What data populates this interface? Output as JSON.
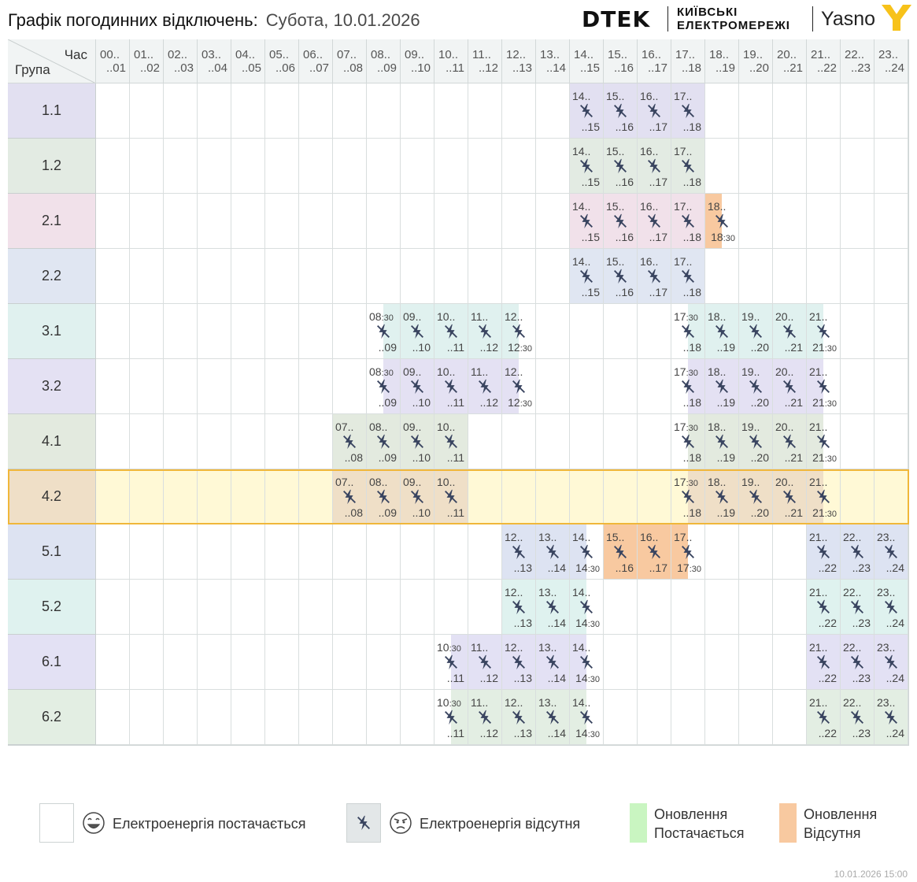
{
  "header": {
    "title": "Графік погодинних відключень:",
    "date": "Субота, 10.01.2026",
    "logo_dtek": "DTEK",
    "logo_kyiv_line1": "КИЇВСЬКІ",
    "logo_kyiv_line2": "ЕЛЕКТРОМЕРЕЖІ",
    "logo_yasno": "Yasno"
  },
  "corner": {
    "hour_label": "Час",
    "group_label": "Група"
  },
  "hours": [
    {
      "s": "00..",
      "e": "..01"
    },
    {
      "s": "01..",
      "e": "..02"
    },
    {
      "s": "02..",
      "e": "..03"
    },
    {
      "s": "03..",
      "e": "..04"
    },
    {
      "s": "04..",
      "e": "..05"
    },
    {
      "s": "05..",
      "e": "..06"
    },
    {
      "s": "06..",
      "e": "..07"
    },
    {
      "s": "07..",
      "e": "..08"
    },
    {
      "s": "08..",
      "e": "..09"
    },
    {
      "s": "09..",
      "e": "..10"
    },
    {
      "s": "10..",
      "e": "..11"
    },
    {
      "s": "11..",
      "e": "..12"
    },
    {
      "s": "12..",
      "e": "..13"
    },
    {
      "s": "13..",
      "e": "..14"
    },
    {
      "s": "14..",
      "e": "..15"
    },
    {
      "s": "15..",
      "e": "..16"
    },
    {
      "s": "16..",
      "e": "..17"
    },
    {
      "s": "17..",
      "e": "..18"
    },
    {
      "s": "18..",
      "e": "..19"
    },
    {
      "s": "19..",
      "e": "..20"
    },
    {
      "s": "20..",
      "e": "..21"
    },
    {
      "s": "21..",
      "e": "..22"
    },
    {
      "s": "22..",
      "e": "..23"
    },
    {
      "s": "23..",
      "e": "..24"
    }
  ],
  "colors": {
    "g1_1": "#e2e0f1",
    "g1_2": "#e3ebe3",
    "g2_1": "#f1e1ea",
    "g2_2": "#e0e6f2",
    "g3_1": "#e0f1ef",
    "g3_2": "#e4e1f3",
    "g4_1": "#e3eadf",
    "g4_2": "#efdfc7",
    "g5_1": "#dde3f2",
    "g5_2": "#dff2ef",
    "g6_1": "#e3e1f4",
    "g6_2": "#e3eee3",
    "highlight_row": "#fff9d6",
    "highlight_border": "#f0b73a",
    "update_off": "#f8c9a0",
    "update_on": "#c9f5c1",
    "icon": "#3a4560"
  },
  "groups": [
    {
      "name": "1.1",
      "color": "g1_1",
      "cells": [
        {
          "h": 14,
          "s": "14..",
          "e": "..15"
        },
        {
          "h": 15,
          "s": "15..",
          "e": "..16"
        },
        {
          "h": 16,
          "s": "16..",
          "e": "..17"
        },
        {
          "h": 17,
          "s": "17..",
          "e": "..18"
        }
      ]
    },
    {
      "name": "1.2",
      "color": "g1_2",
      "cells": [
        {
          "h": 14,
          "s": "14..",
          "e": "..15"
        },
        {
          "h": 15,
          "s": "15..",
          "e": "..16"
        },
        {
          "h": 16,
          "s": "16..",
          "e": "..17"
        },
        {
          "h": 17,
          "s": "17..",
          "e": "..18"
        }
      ]
    },
    {
      "name": "2.1",
      "color": "g2_1",
      "cells": [
        {
          "h": 14,
          "s": "14..",
          "e": "..15"
        },
        {
          "h": 15,
          "s": "15..",
          "e": "..16"
        },
        {
          "h": 16,
          "s": "16..",
          "e": "..17"
        },
        {
          "h": 17,
          "s": "17..",
          "e": "..18"
        },
        {
          "h": 18,
          "s": "18..",
          "e": "18",
          "e2": ":30",
          "half": "left",
          "upd": true
        }
      ]
    },
    {
      "name": "2.2",
      "color": "g2_2",
      "cells": [
        {
          "h": 14,
          "s": "14..",
          "e": "..15"
        },
        {
          "h": 15,
          "s": "15..",
          "e": "..16"
        },
        {
          "h": 16,
          "s": "16..",
          "e": "..17"
        },
        {
          "h": 17,
          "s": "17..",
          "e": "..18"
        }
      ]
    },
    {
      "name": "3.1",
      "color": "g3_1",
      "cells": [
        {
          "h": 8,
          "s": "08",
          "s2": ":30",
          "e": "..09",
          "half": "right"
        },
        {
          "h": 9,
          "s": "09..",
          "e": "..10"
        },
        {
          "h": 10,
          "s": "10..",
          "e": "..11"
        },
        {
          "h": 11,
          "s": "11..",
          "e": "..12"
        },
        {
          "h": 12,
          "s": "12..",
          "e": "12",
          "e2": ":30",
          "half": "left"
        },
        {
          "h": 17,
          "s": "17",
          "s2": ":30",
          "e": "..18",
          "half": "right"
        },
        {
          "h": 18,
          "s": "18..",
          "e": "..19"
        },
        {
          "h": 19,
          "s": "19..",
          "e": "..20"
        },
        {
          "h": 20,
          "s": "20..",
          "e": "..21"
        },
        {
          "h": 21,
          "s": "21..",
          "e": "21",
          "e2": ":30",
          "half": "left"
        }
      ]
    },
    {
      "name": "3.2",
      "color": "g3_2",
      "cells": [
        {
          "h": 8,
          "s": "08",
          "s2": ":30",
          "e": "..09",
          "half": "right"
        },
        {
          "h": 9,
          "s": "09..",
          "e": "..10"
        },
        {
          "h": 10,
          "s": "10..",
          "e": "..11"
        },
        {
          "h": 11,
          "s": "11..",
          "e": "..12"
        },
        {
          "h": 12,
          "s": "12..",
          "e": "12",
          "e2": ":30",
          "half": "left"
        },
        {
          "h": 17,
          "s": "17",
          "s2": ":30",
          "e": "..18",
          "half": "right"
        },
        {
          "h": 18,
          "s": "18..",
          "e": "..19"
        },
        {
          "h": 19,
          "s": "19..",
          "e": "..20"
        },
        {
          "h": 20,
          "s": "20..",
          "e": "..21"
        },
        {
          "h": 21,
          "s": "21..",
          "e": "21",
          "e2": ":30",
          "half": "left"
        }
      ]
    },
    {
      "name": "4.1",
      "color": "g4_1",
      "cells": [
        {
          "h": 7,
          "s": "07..",
          "e": "..08"
        },
        {
          "h": 8,
          "s": "08..",
          "e": "..09"
        },
        {
          "h": 9,
          "s": "09..",
          "e": "..10"
        },
        {
          "h": 10,
          "s": "10..",
          "e": "..11"
        },
        {
          "h": 17,
          "s": "17",
          "s2": ":30",
          "e": "..18",
          "half": "right"
        },
        {
          "h": 18,
          "s": "18..",
          "e": "..19"
        },
        {
          "h": 19,
          "s": "19..",
          "e": "..20"
        },
        {
          "h": 20,
          "s": "20..",
          "e": "..21"
        },
        {
          "h": 21,
          "s": "21..",
          "e": "21",
          "e2": ":30",
          "half": "left"
        }
      ]
    },
    {
      "name": "4.2",
      "color": "g4_2",
      "highlight": true,
      "cells": [
        {
          "h": 7,
          "s": "07..",
          "e": "..08"
        },
        {
          "h": 8,
          "s": "08..",
          "e": "..09"
        },
        {
          "h": 9,
          "s": "09..",
          "e": "..10"
        },
        {
          "h": 10,
          "s": "10..",
          "e": "..11"
        },
        {
          "h": 17,
          "s": "17",
          "s2": ":30",
          "e": "..18",
          "half": "right"
        },
        {
          "h": 18,
          "s": "18..",
          "e": "..19"
        },
        {
          "h": 19,
          "s": "19..",
          "e": "..20"
        },
        {
          "h": 20,
          "s": "20..",
          "e": "..21"
        },
        {
          "h": 21,
          "s": "21..",
          "e": "21",
          "e2": ":30",
          "half": "left"
        }
      ]
    },
    {
      "name": "5.1",
      "color": "g5_1",
      "cells": [
        {
          "h": 12,
          "s": "12..",
          "e": "..13"
        },
        {
          "h": 13,
          "s": "13..",
          "e": "..14"
        },
        {
          "h": 14,
          "s": "14..",
          "e": "14",
          "e2": ":30",
          "half": "left"
        },
        {
          "h": 15,
          "s": "15..",
          "e": "..16",
          "upd": true
        },
        {
          "h": 16,
          "s": "16..",
          "e": "..17",
          "upd": true
        },
        {
          "h": 17,
          "s": "17..",
          "e": "17",
          "e2": ":30",
          "half": "left",
          "upd": true
        },
        {
          "h": 21,
          "s": "21..",
          "e": "..22"
        },
        {
          "h": 22,
          "s": "22..",
          "e": "..23"
        },
        {
          "h": 23,
          "s": "23..",
          "e": "..24"
        }
      ]
    },
    {
      "name": "5.2",
      "color": "g5_2",
      "cells": [
        {
          "h": 12,
          "s": "12..",
          "e": "..13"
        },
        {
          "h": 13,
          "s": "13..",
          "e": "..14"
        },
        {
          "h": 14,
          "s": "14..",
          "e": "14",
          "e2": ":30",
          "half": "left"
        },
        {
          "h": 21,
          "s": "21..",
          "e": "..22"
        },
        {
          "h": 22,
          "s": "22..",
          "e": "..23"
        },
        {
          "h": 23,
          "s": "23..",
          "e": "..24"
        }
      ]
    },
    {
      "name": "6.1",
      "color": "g6_1",
      "cells": [
        {
          "h": 10,
          "s": "10",
          "s2": ":30",
          "e": "..11",
          "half": "right"
        },
        {
          "h": 11,
          "s": "11..",
          "e": "..12"
        },
        {
          "h": 12,
          "s": "12..",
          "e": "..13"
        },
        {
          "h": 13,
          "s": "13..",
          "e": "..14"
        },
        {
          "h": 14,
          "s": "14..",
          "e": "14",
          "e2": ":30",
          "half": "left"
        },
        {
          "h": 21,
          "s": "21..",
          "e": "..22"
        },
        {
          "h": 22,
          "s": "22..",
          "e": "..23"
        },
        {
          "h": 23,
          "s": "23..",
          "e": "..24"
        }
      ]
    },
    {
      "name": "6.2",
      "color": "g6_2",
      "cells": [
        {
          "h": 10,
          "s": "10",
          "s2": ":30",
          "e": "..11",
          "half": "right"
        },
        {
          "h": 11,
          "s": "11..",
          "e": "..12"
        },
        {
          "h": 12,
          "s": "12..",
          "e": "..13"
        },
        {
          "h": 13,
          "s": "13..",
          "e": "..14"
        },
        {
          "h": 14,
          "s": "14..",
          "e": "14",
          "e2": ":30",
          "half": "left"
        },
        {
          "h": 21,
          "s": "21..",
          "e": "..22"
        },
        {
          "h": 22,
          "s": "22..",
          "e": "..23"
        },
        {
          "h": 23,
          "s": "23..",
          "e": "..24"
        }
      ]
    }
  ],
  "legend": {
    "supplied": "Електроенергія постачається",
    "absent": "Електроенергія відсутня",
    "update_on_l1": "Оновлення",
    "update_on_l2": "Постачається",
    "update_off_l1": "Оновлення",
    "update_off_l2": "Відсутня"
  },
  "footer": {
    "timestamp": "10.01.2026   15:00"
  }
}
